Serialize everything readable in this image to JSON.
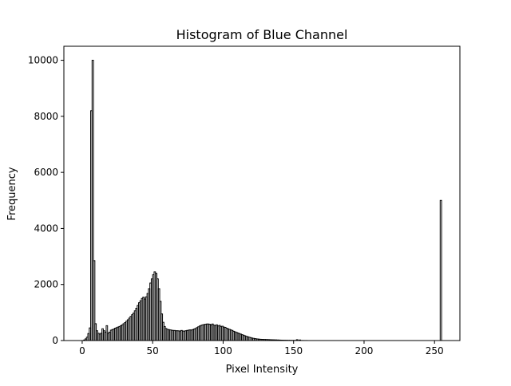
{
  "chart_data": {
    "type": "histogram",
    "title": "Histogram of Blue Channel",
    "xlabel": "Pixel Intensity",
    "ylabel": "Frequency",
    "xlim": [
      -13,
      268
    ],
    "ylim": [
      0,
      10500
    ],
    "xticks": [
      0,
      50,
      100,
      150,
      200,
      250
    ],
    "yticks": [
      0,
      2000,
      4000,
      6000,
      8000,
      10000
    ],
    "bin_width": 1,
    "grid": false,
    "legend": "none",
    "style": {
      "stroke": "#000000",
      "fill": "none"
    },
    "counts": [
      [
        0,
        0
      ],
      [
        1,
        20
      ],
      [
        2,
        60
      ],
      [
        3,
        120
      ],
      [
        4,
        250
      ],
      [
        5,
        450
      ],
      [
        6,
        8200
      ],
      [
        7,
        10000
      ],
      [
        8,
        2850
      ],
      [
        9,
        600
      ],
      [
        10,
        350
      ],
      [
        11,
        260
      ],
      [
        12,
        230
      ],
      [
        13,
        260
      ],
      [
        14,
        420
      ],
      [
        15,
        350
      ],
      [
        16,
        300
      ],
      [
        17,
        530
      ],
      [
        18,
        260
      ],
      [
        19,
        300
      ],
      [
        20,
        370
      ],
      [
        21,
        390
      ],
      [
        22,
        410
      ],
      [
        23,
        440
      ],
      [
        24,
        460
      ],
      [
        25,
        480
      ],
      [
        26,
        500
      ],
      [
        27,
        530
      ],
      [
        28,
        560
      ],
      [
        29,
        600
      ],
      [
        30,
        640
      ],
      [
        31,
        690
      ],
      [
        32,
        740
      ],
      [
        33,
        800
      ],
      [
        34,
        860
      ],
      [
        35,
        920
      ],
      [
        36,
        980
      ],
      [
        37,
        1060
      ],
      [
        38,
        1150
      ],
      [
        39,
        1250
      ],
      [
        40,
        1350
      ],
      [
        41,
        1420
      ],
      [
        42,
        1500
      ],
      [
        43,
        1550
      ],
      [
        44,
        1480
      ],
      [
        45,
        1560
      ],
      [
        46,
        1680
      ],
      [
        47,
        1850
      ],
      [
        48,
        2050
      ],
      [
        49,
        2200
      ],
      [
        50,
        2350
      ],
      [
        51,
        2450
      ],
      [
        52,
        2400
      ],
      [
        53,
        2200
      ],
      [
        54,
        1850
      ],
      [
        55,
        1400
      ],
      [
        56,
        950
      ],
      [
        57,
        650
      ],
      [
        58,
        500
      ],
      [
        59,
        430
      ],
      [
        60,
        400
      ],
      [
        61,
        390
      ],
      [
        62,
        380
      ],
      [
        63,
        370
      ],
      [
        64,
        360
      ],
      [
        65,
        360
      ],
      [
        66,
        350
      ],
      [
        67,
        350
      ],
      [
        68,
        345
      ],
      [
        69,
        340
      ],
      [
        70,
        360
      ],
      [
        71,
        340
      ],
      [
        72,
        335
      ],
      [
        73,
        350
      ],
      [
        74,
        360
      ],
      [
        75,
        370
      ],
      [
        76,
        380
      ],
      [
        77,
        375
      ],
      [
        78,
        390
      ],
      [
        79,
        410
      ],
      [
        80,
        430
      ],
      [
        81,
        460
      ],
      [
        82,
        490
      ],
      [
        83,
        520
      ],
      [
        84,
        540
      ],
      [
        85,
        560
      ],
      [
        86,
        570
      ],
      [
        87,
        580
      ],
      [
        88,
        590
      ],
      [
        89,
        590
      ],
      [
        90,
        580
      ],
      [
        91,
        560
      ],
      [
        92,
        590
      ],
      [
        93,
        550
      ],
      [
        94,
        540
      ],
      [
        95,
        560
      ],
      [
        96,
        520
      ],
      [
        97,
        540
      ],
      [
        98,
        500
      ],
      [
        99,
        510
      ],
      [
        100,
        480
      ],
      [
        101,
        470
      ],
      [
        102,
        440
      ],
      [
        103,
        420
      ],
      [
        104,
        400
      ],
      [
        105,
        380
      ],
      [
        106,
        360
      ],
      [
        107,
        330
      ],
      [
        108,
        310
      ],
      [
        109,
        290
      ],
      [
        110,
        270
      ],
      [
        111,
        250
      ],
      [
        112,
        230
      ],
      [
        113,
        210
      ],
      [
        114,
        190
      ],
      [
        115,
        170
      ],
      [
        116,
        150
      ],
      [
        117,
        135
      ],
      [
        118,
        120
      ],
      [
        119,
        105
      ],
      [
        120,
        90
      ],
      [
        121,
        80
      ],
      [
        122,
        70
      ],
      [
        123,
        62
      ],
      [
        124,
        55
      ],
      [
        125,
        50
      ],
      [
        126,
        45
      ],
      [
        127,
        42
      ],
      [
        128,
        40
      ],
      [
        129,
        38
      ],
      [
        130,
        36
      ],
      [
        131,
        34
      ],
      [
        132,
        32
      ],
      [
        133,
        30
      ],
      [
        134,
        28
      ],
      [
        135,
        26
      ],
      [
        136,
        24
      ],
      [
        137,
        22
      ],
      [
        138,
        20
      ],
      [
        139,
        18
      ],
      [
        140,
        16
      ],
      [
        141,
        14
      ],
      [
        142,
        12
      ],
      [
        143,
        11
      ],
      [
        144,
        10
      ],
      [
        145,
        9
      ],
      [
        146,
        8
      ],
      [
        147,
        7
      ],
      [
        148,
        6
      ],
      [
        149,
        5
      ],
      [
        150,
        5
      ],
      [
        151,
        4
      ],
      [
        152,
        30
      ],
      [
        153,
        3
      ],
      [
        154,
        20
      ],
      [
        155,
        2
      ],
      [
        156,
        2
      ],
      [
        157,
        1
      ],
      [
        158,
        1
      ],
      [
        159,
        1
      ],
      [
        160,
        0
      ],
      [
        254,
        5000
      ],
      [
        255,
        0
      ]
    ]
  }
}
